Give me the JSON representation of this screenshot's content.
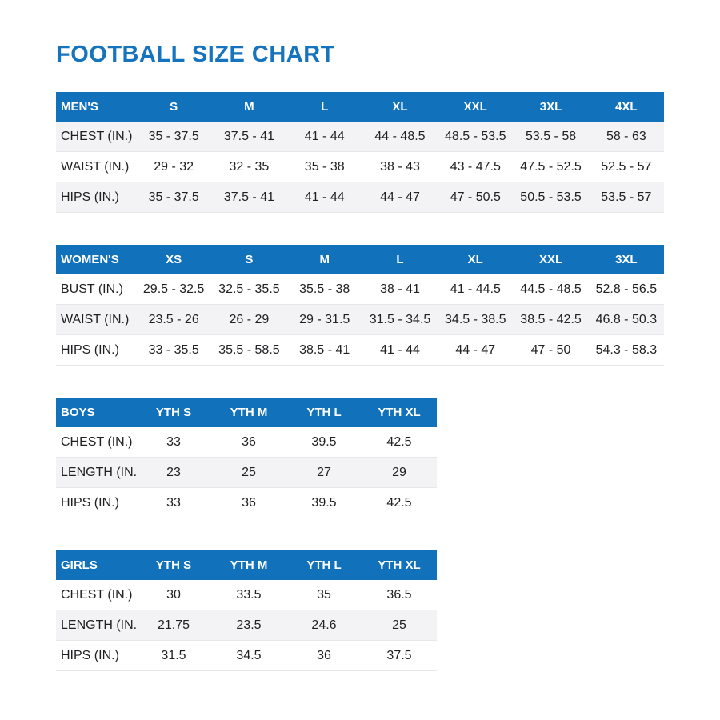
{
  "page_title": "FOOTBALL SIZE CHART",
  "colors": {
    "title_blue": "#1673be",
    "header_blue": "#1172bb",
    "header_text": "#ffffff",
    "row_shade": "#f3f3f5",
    "body_text": "#212124"
  },
  "tables": [
    {
      "id": "mens",
      "header": [
        "MEN'S",
        "S",
        "M",
        "L",
        "XL",
        "XXL",
        "3XL",
        "4XL"
      ],
      "rows": [
        [
          "CHEST (IN.)",
          "35 - 37.5",
          "37.5 - 41",
          "41 - 44",
          "44 - 48.5",
          "48.5 - 53.5",
          "53.5 - 58",
          "58 - 63"
        ],
        [
          "WAIST (IN.)",
          "29 - 32",
          "32 - 35",
          "35 - 38",
          "38 - 43",
          "43 - 47.5",
          "47.5 - 52.5",
          "52.5 - 57"
        ],
        [
          "HIPS (IN.)",
          "35 - 37.5",
          "37.5 - 41",
          "41 - 44",
          "44 - 47",
          "47 - 50.5",
          "50.5 - 53.5",
          "53.5 - 57"
        ]
      ],
      "shaded_rows": [
        0,
        2
      ]
    },
    {
      "id": "womens",
      "header": [
        "WOMEN'S",
        "XS",
        "S",
        "M",
        "L",
        "XL",
        "XXL",
        "3XL"
      ],
      "rows": [
        [
          "BUST (IN.)",
          "29.5 - 32.5",
          "32.5 - 35.5",
          "35.5 - 38",
          "38 - 41",
          "41 - 44.5",
          "44.5 - 48.5",
          "52.8 - 56.5"
        ],
        [
          "WAIST (IN.)",
          "23.5 - 26",
          "26 - 29",
          "29 - 31.5",
          "31.5 - 34.5",
          "34.5 - 38.5",
          "38.5 - 42.5",
          "46.8 - 50.3"
        ],
        [
          "HIPS (IN.)",
          "33 - 35.5",
          "35.5 - 58.5",
          "38.5 - 41",
          "41 - 44",
          "44 - 47",
          "47 - 50",
          "54.3 - 58.3"
        ]
      ],
      "shaded_rows": [
        1
      ]
    },
    {
      "id": "boys",
      "header": [
        "BOYS",
        "YTH S",
        "YTH M",
        "YTH L",
        "YTH XL"
      ],
      "rows": [
        [
          "CHEST (IN.)",
          "33",
          "36",
          "39.5",
          "42.5"
        ],
        [
          "LENGTH (IN.)",
          "23",
          "25",
          "27",
          "29"
        ],
        [
          "HIPS (IN.)",
          "33",
          "36",
          "39.5",
          "42.5"
        ]
      ],
      "shaded_rows": [
        1
      ]
    },
    {
      "id": "girls",
      "header": [
        "GIRLS",
        "YTH S",
        "YTH M",
        "YTH L",
        "YTH XL"
      ],
      "rows": [
        [
          "CHEST (IN.)",
          "30",
          "33.5",
          "35",
          "36.5"
        ],
        [
          "LENGTH (IN.)",
          "21.75",
          "23.5",
          "24.6",
          "25"
        ],
        [
          "HIPS (IN.)",
          "31.5",
          "34.5",
          "36",
          "37.5"
        ]
      ],
      "shaded_rows": [
        1
      ]
    }
  ]
}
